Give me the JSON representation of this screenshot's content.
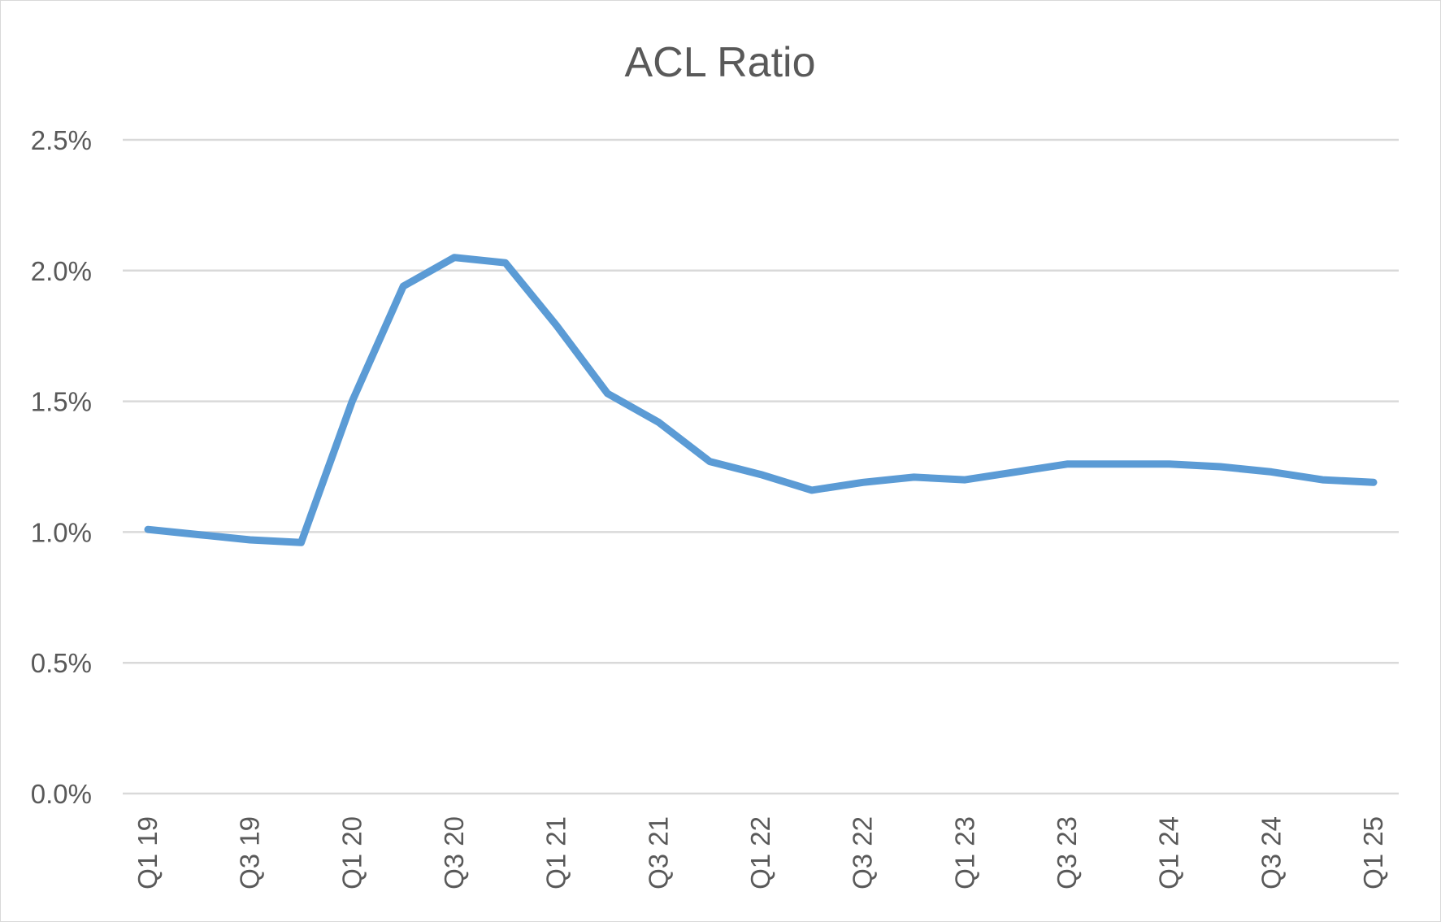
{
  "chart_data": {
    "type": "line",
    "title": "ACL Ratio",
    "xlabel": "",
    "ylabel": "",
    "ylim": [
      0,
      0.025
    ],
    "y_tick_values": [
      0,
      0.005,
      0.01,
      0.015,
      0.02,
      0.025
    ],
    "y_tick_labels": [
      "0.0%",
      "0.5%",
      "1.0%",
      "1.5%",
      "2.0%",
      "2.5%"
    ],
    "grid": true,
    "legend": "none",
    "categories": [
      "Q1 19",
      "Q2 19",
      "Q3 19",
      "Q4 19",
      "Q1 20",
      "Q2 20",
      "Q3 20",
      "Q4 20",
      "Q1 21",
      "Q2 21",
      "Q3 21",
      "Q4 21",
      "Q1 22",
      "Q2 22",
      "Q3 22",
      "Q4 22",
      "Q1 23",
      "Q2 23",
      "Q3 23",
      "Q4 23",
      "Q1 24",
      "Q2 24",
      "Q3 24",
      "Q4 24",
      "Q1 25"
    ],
    "x_tick_labels": [
      "Q1 19",
      "Q3 19",
      "Q1 20",
      "Q3 20",
      "Q1 21",
      "Q3 21",
      "Q1 22",
      "Q3 22",
      "Q1 23",
      "Q3 23",
      "Q1 24",
      "Q3 24",
      "Q1 25"
    ],
    "series": [
      {
        "color": "#5b9bd5",
        "values": [
          0.0101,
          0.0099,
          0.0097,
          0.0096,
          0.015,
          0.0194,
          0.0205,
          0.0203,
          0.0179,
          0.0153,
          0.0142,
          0.0127,
          0.0122,
          0.0116,
          0.0119,
          0.0121,
          0.012,
          0.0123,
          0.0126,
          0.0126,
          0.0126,
          0.0125,
          0.0123,
          0.012,
          0.0119
        ]
      }
    ]
  }
}
